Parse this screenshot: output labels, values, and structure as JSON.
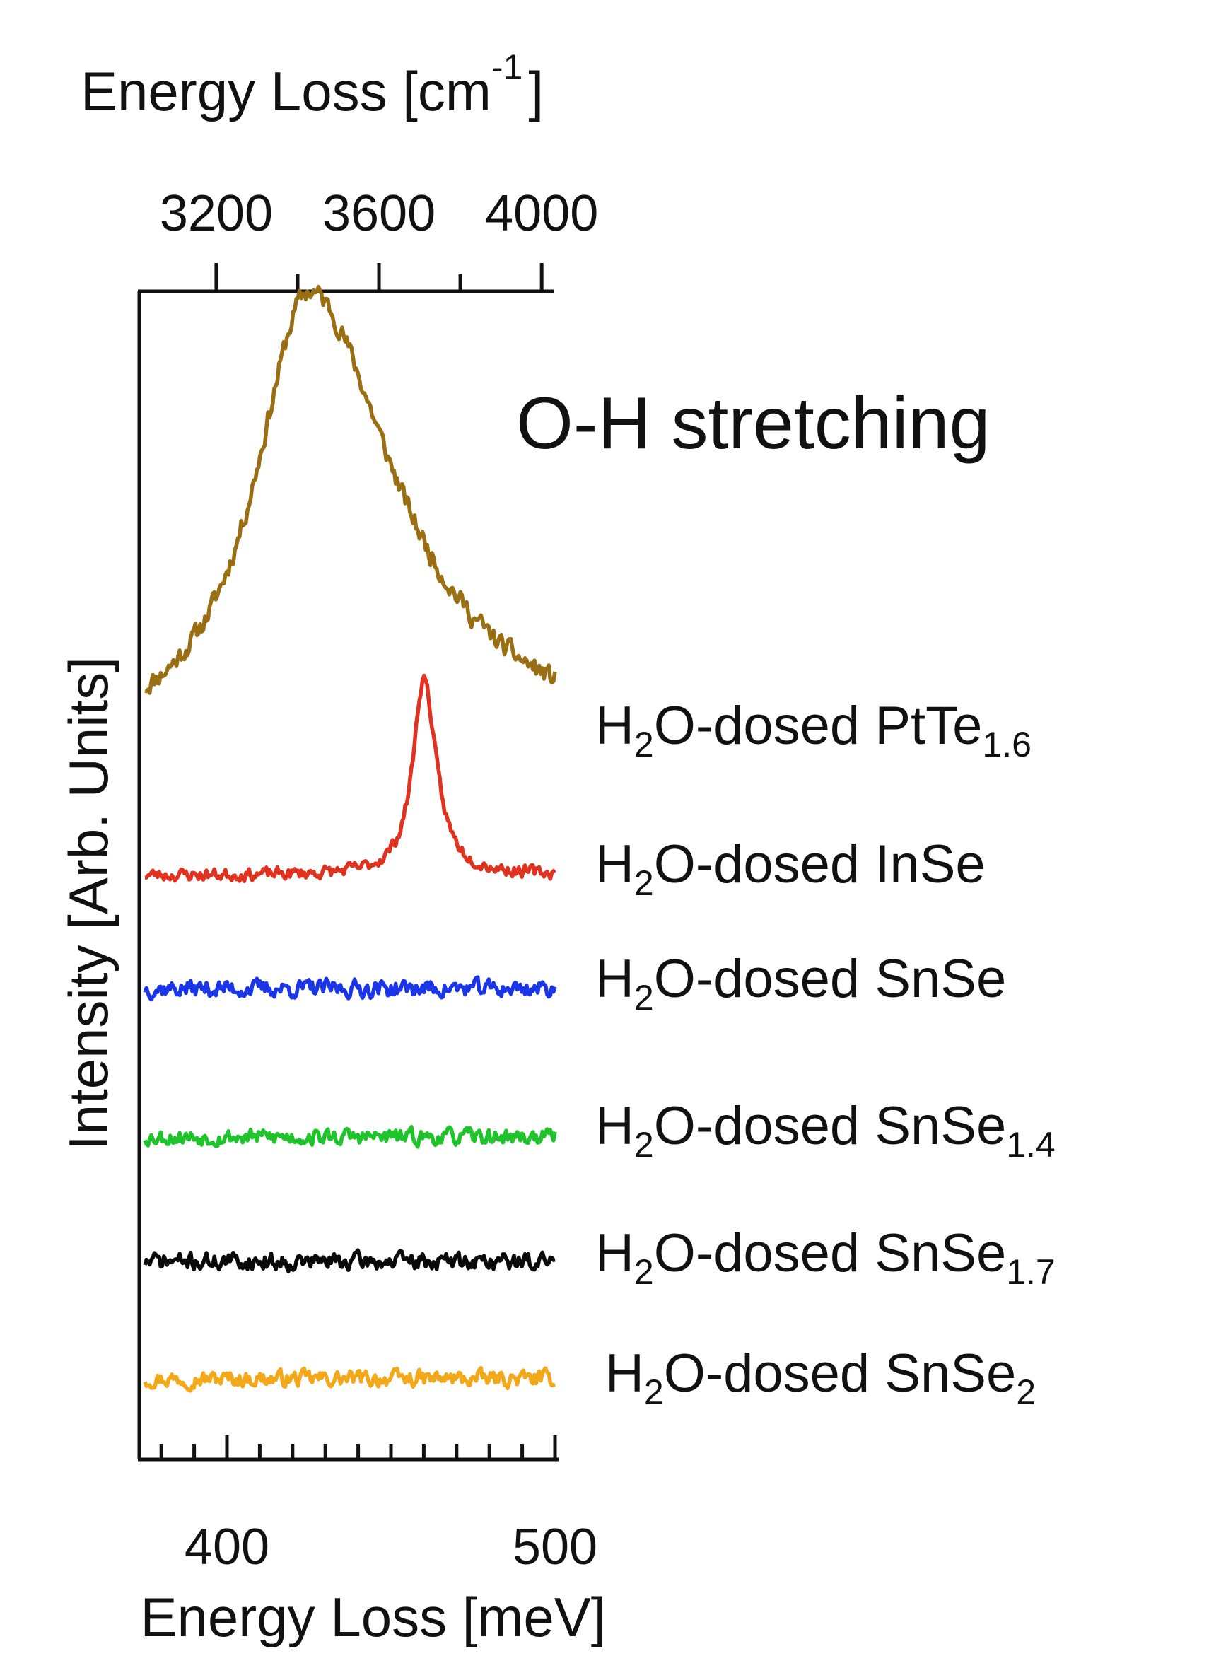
{
  "chart_data": {
    "type": "line",
    "annotation": "O-H stretching",
    "xlabel_bottom": "Energy Loss [meV]",
    "xlabel_top": {
      "main": "Energy Loss [cm",
      "superscript": "-1",
      "close": "]"
    },
    "ylabel": "Intensity [Arb. Units]",
    "xlim": [
      375,
      500
    ],
    "x_ticks": [
      400,
      500
    ],
    "x_tick_labels": [
      "400",
      "500"
    ],
    "x_minor_step": 10,
    "top_ticks": [
      3200,
      3600,
      4000
    ],
    "top_tick_labels": [
      "3200",
      "3600",
      "4000"
    ],
    "top_minor_step": 200,
    "meV_to_cm": 8.0655,
    "series": [
      {
        "name": "H2O-dosed PtTe1.6",
        "label": {
          "pre": "H",
          "sub1": "2",
          "mid": "O-dosed PtTe",
          "sub2": "1.6"
        },
        "color": "#9a6e12",
        "baseline": 0.0,
        "noise": 0.042,
        "seed": 11,
        "peaks": [
          {
            "center": 425,
            "amplitude": 1.2,
            "width_left": 20,
            "width_right": 32,
            "shape": "lorentzian"
          }
        ],
        "slope": 0.0
      },
      {
        "name": "H2O-dosed InSe",
        "label": {
          "pre": "H",
          "sub1": "2",
          "mid": "O-dosed InSe",
          "sub2": ""
        },
        "color": "#e0321e",
        "baseline": 0.0,
        "noise": 0.03,
        "seed": 23,
        "peaks": [
          {
            "center": 460,
            "amplitude": 0.62,
            "width_left": 4,
            "width_right": 4.5,
            "shape": "lorentzian"
          }
        ],
        "slope": 0.0
      },
      {
        "name": "H2O-dosed SnSe",
        "label": {
          "pre": "H",
          "sub1": "2",
          "mid": "O-dosed SnSe",
          "sub2": ""
        },
        "color": "#1a36e8",
        "baseline": 0.0,
        "noise": 0.12,
        "seed": 37,
        "peaks": [],
        "slope": 0.0
      },
      {
        "name": "H2O-dosed SnSe1.4",
        "label": {
          "pre": "H",
          "sub1": "2",
          "mid": "O-dosed SnSe",
          "sub2": "1.4"
        },
        "color": "#1ec42a",
        "baseline": 0.0,
        "noise": 0.11,
        "seed": 53,
        "peaks": [],
        "slope": 0.0
      },
      {
        "name": "H2O-dosed SnSe1.7",
        "label": {
          "pre": "H",
          "sub1": "2",
          "mid": "O-dosed SnSe",
          "sub2": "1.7"
        },
        "color": "#0a0a0a",
        "baseline": 0.0,
        "noise": 0.12,
        "seed": 71,
        "peaks": [],
        "slope": 0.0
      },
      {
        "name": "H2O-dosed SnSe2",
        "label": {
          "pre": "H",
          "sub1": "2",
          "mid": "O-dosed SnSe",
          "sub2": "2"
        },
        "color": "#f2a818",
        "baseline": 0.0,
        "noise": 0.11,
        "seed": 97,
        "peaks": [],
        "slope": 0.0
      }
    ]
  }
}
